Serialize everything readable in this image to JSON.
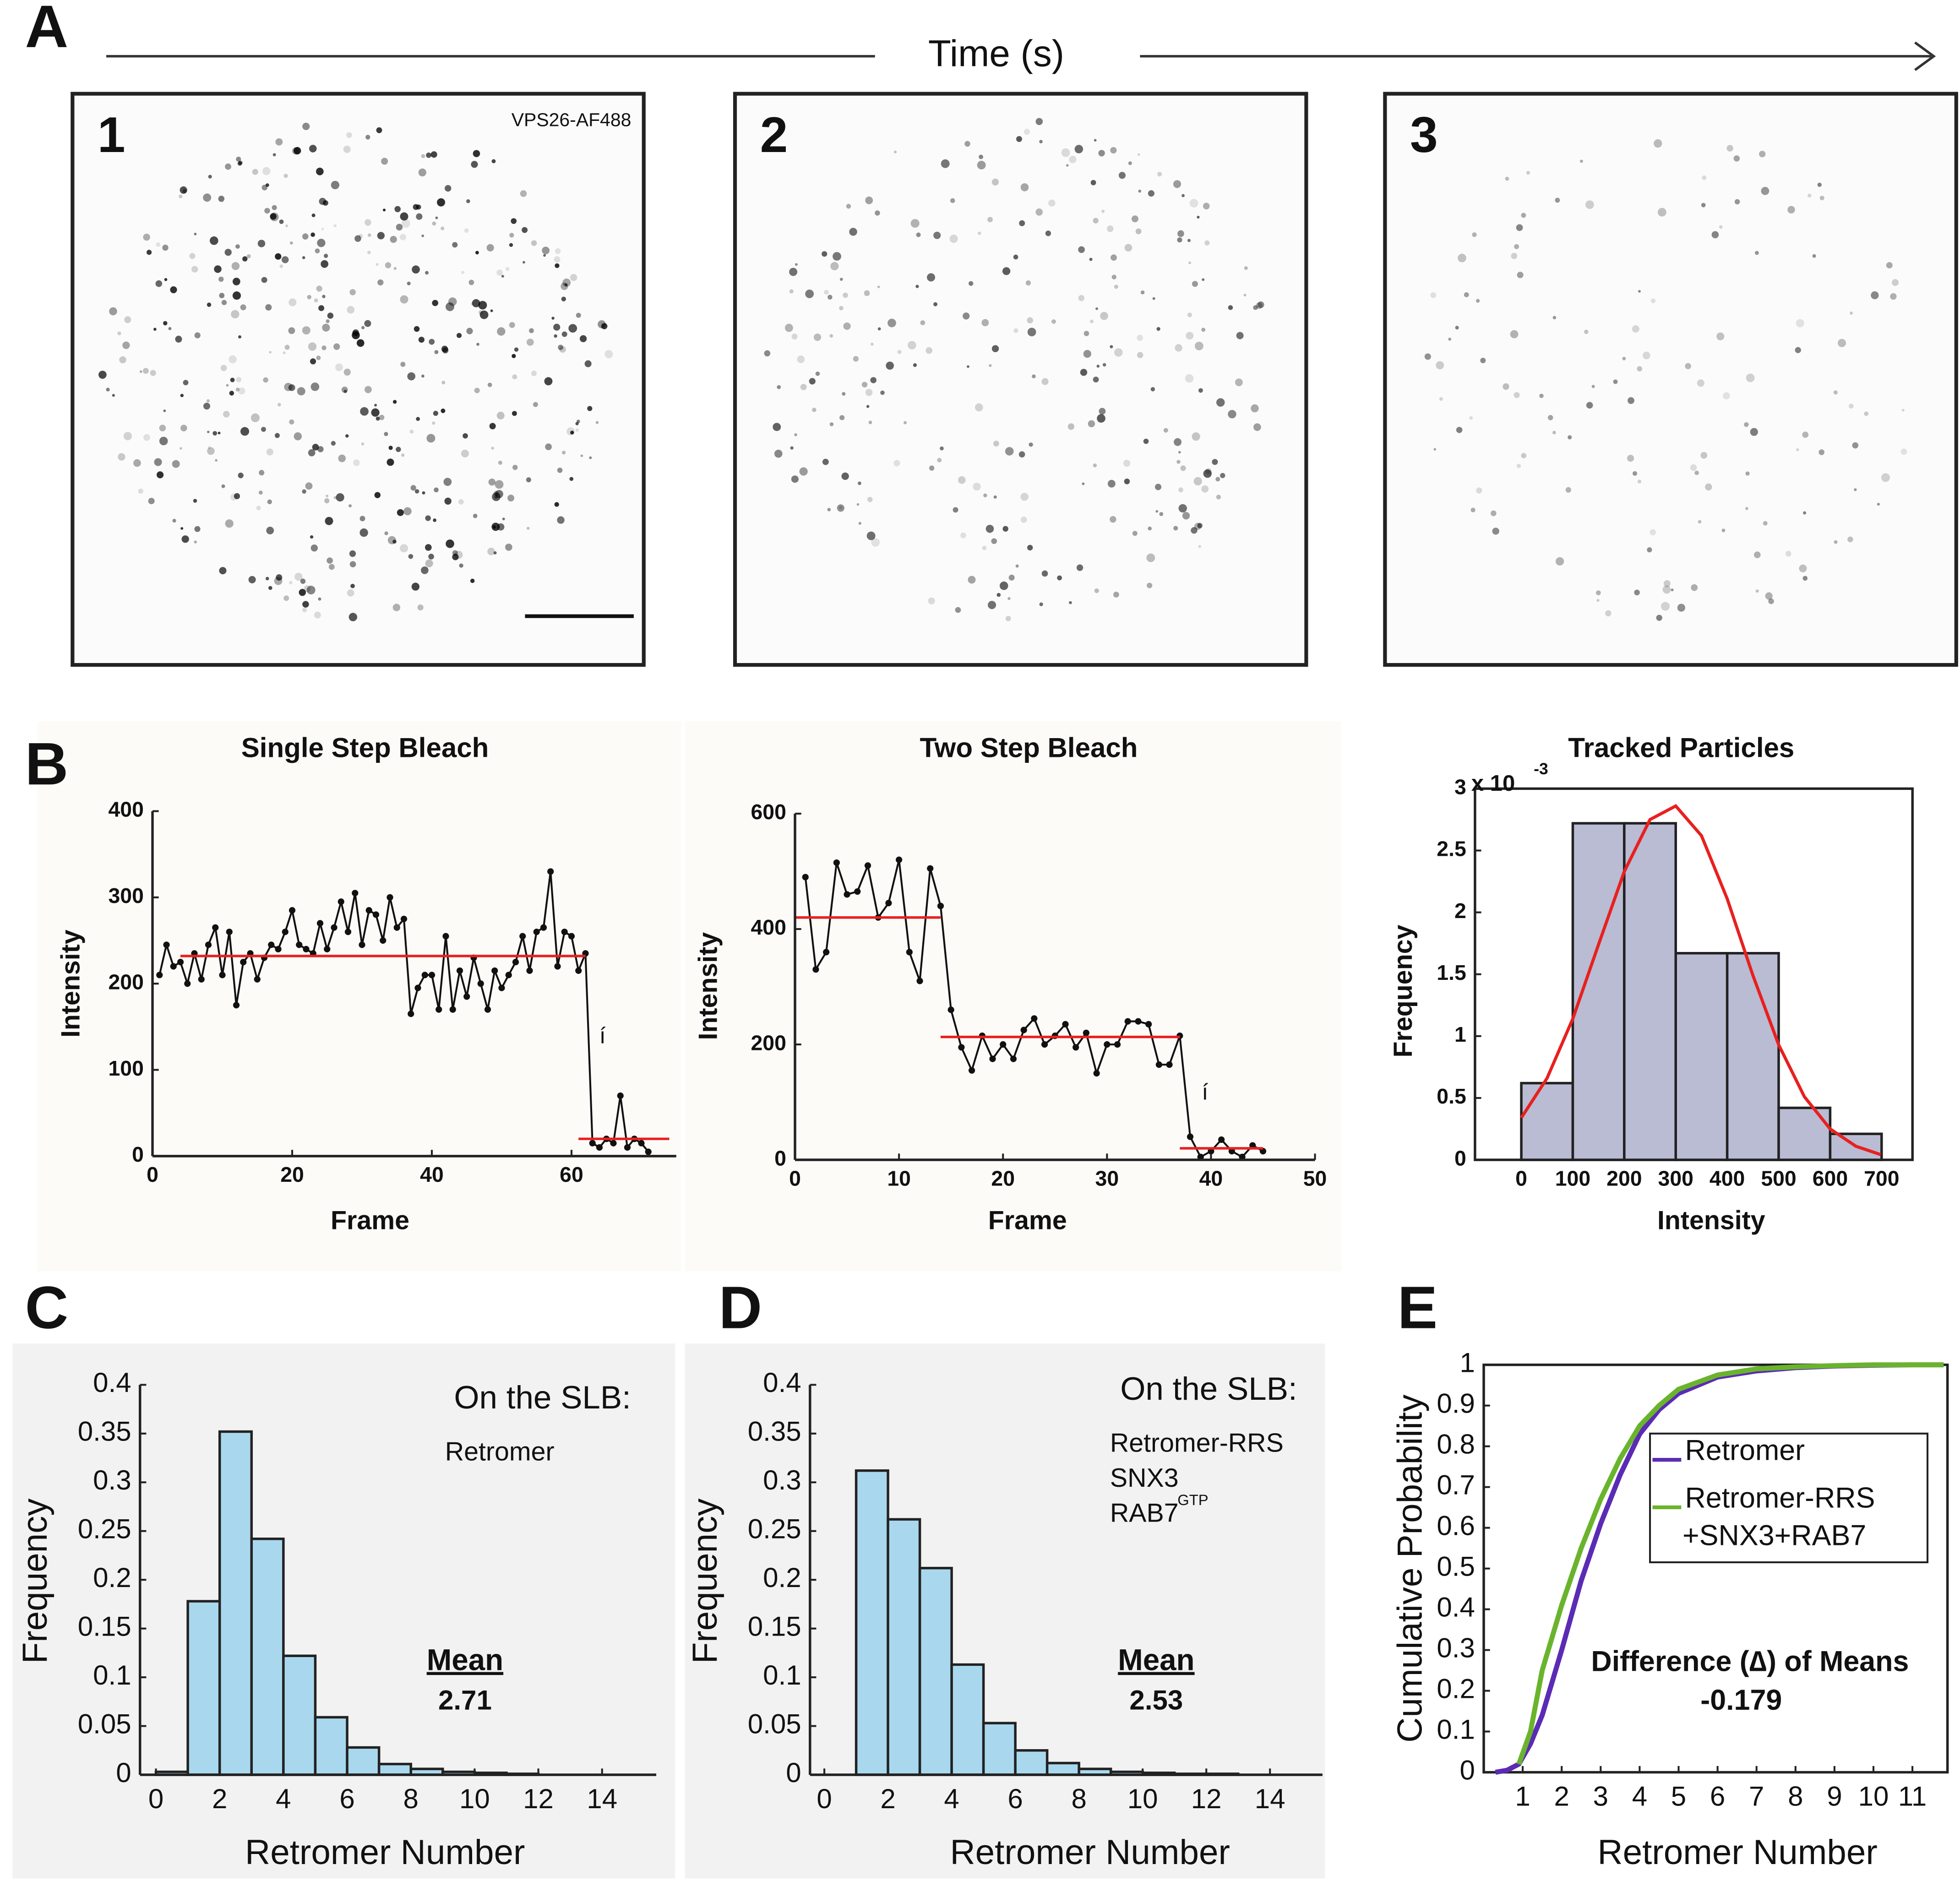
{
  "panel_labels": [
    "A",
    "B",
    "C",
    "D",
    "E"
  ],
  "panel_a": {
    "axis_label": "Time (s)",
    "images": [
      {
        "number": "1",
        "label": "VPS26-AF488"
      },
      {
        "number": "2"
      },
      {
        "number": "3"
      }
    ]
  },
  "chart_data": [
    {
      "type": "line",
      "title": "Single Step Bleach",
      "x_label": "Frame",
      "y_label": "Intensity",
      "annotation": "í",
      "color": "#111111",
      "fit_color": "#e8201f",
      "x": [
        1,
        2,
        3,
        4,
        5,
        6,
        7,
        8,
        9,
        10,
        11,
        12,
        13,
        14,
        15,
        16,
        17,
        18,
        19,
        20,
        21,
        22,
        23,
        24,
        25,
        26,
        27,
        28,
        29,
        30,
        31,
        32,
        33,
        34,
        35,
        36,
        37,
        38,
        39,
        40,
        41,
        42,
        43,
        44,
        45,
        46,
        47,
        48,
        49,
        50,
        51,
        52,
        53,
        54,
        55,
        56,
        57,
        58,
        59,
        60,
        61,
        62,
        63,
        64,
        65,
        66,
        67,
        68,
        69,
        70,
        71
      ],
      "values": [
        210,
        245,
        220,
        225,
        200,
        235,
        205,
        245,
        265,
        210,
        260,
        175,
        225,
        235,
        205,
        230,
        245,
        240,
        260,
        285,
        245,
        240,
        235,
        270,
        240,
        265,
        295,
        260,
        305,
        245,
        285,
        280,
        250,
        300,
        265,
        275,
        165,
        195,
        210,
        210,
        170,
        255,
        170,
        215,
        185,
        230,
        200,
        170,
        215,
        195,
        210,
        225,
        255,
        215,
        260,
        265,
        330,
        220,
        260,
        255,
        215,
        235,
        15,
        10,
        20,
        15,
        70,
        10,
        20,
        15,
        5
      ],
      "fits": [
        {
          "x": [
            4,
            62
          ],
          "y": [
            232,
            232
          ]
        },
        {
          "x": [
            61,
            74
          ],
          "y": [
            20,
            20
          ]
        }
      ],
      "xlim": [
        0,
        75
      ],
      "ylim": [
        0,
        400
      ],
      "xticks": [
        0,
        20,
        40,
        60
      ],
      "yticks": [
        0,
        100,
        200,
        300,
        400
      ]
    },
    {
      "type": "line",
      "title": "Two Step Bleach",
      "x_label": "Frame",
      "y_label": "Intensity",
      "annotation": "í",
      "color": "#111111",
      "fit_color": "#e8201f",
      "x": [
        1,
        2,
        3,
        4,
        5,
        6,
        7,
        8,
        9,
        10,
        11,
        12,
        13,
        14,
        15,
        16,
        17,
        18,
        19,
        20,
        21,
        22,
        23,
        24,
        25,
        26,
        27,
        28,
        29,
        30,
        31,
        32,
        33,
        34,
        35,
        36,
        37,
        38,
        39,
        40,
        41,
        42,
        43,
        44,
        45
      ],
      "values": [
        490,
        330,
        360,
        515,
        460,
        465,
        510,
        420,
        445,
        520,
        360,
        310,
        505,
        440,
        260,
        195,
        155,
        215,
        175,
        200,
        175,
        225,
        245,
        200,
        215,
        235,
        195,
        220,
        150,
        200,
        200,
        240,
        240,
        235,
        165,
        165,
        215,
        40,
        5,
        15,
        35,
        15,
        5,
        25,
        15
      ],
      "fits": [
        {
          "x": [
            0,
            14
          ],
          "y": [
            420,
            420
          ]
        },
        {
          "x": [
            14,
            37
          ],
          "y": [
            213,
            213
          ]
        },
        {
          "x": [
            37,
            45
          ],
          "y": [
            20,
            20
          ]
        }
      ],
      "xlim": [
        0,
        50
      ],
      "ylim": [
        0,
        600
      ],
      "xticks": [
        0,
        10,
        20,
        30,
        40,
        50
      ],
      "yticks": [
        0,
        200,
        400,
        600
      ]
    },
    {
      "type": "histogram",
      "title": "Tracked Particles",
      "x_label": "Intensity",
      "y_label": "Frequency",
      "multiplier": "x 10",
      "multiplier_exponent": "-3",
      "color": "#b9bcd3",
      "edge_color": "#222222",
      "curve_color": "#e8201f",
      "bins": [
        0,
        100,
        200,
        300,
        400,
        500,
        600,
        700
      ],
      "values": [
        0.62,
        2.72,
        2.72,
        1.67,
        1.67,
        0.42,
        0.21
      ],
      "curve": {
        "x": [
          0,
          50,
          100,
          150,
          200,
          250,
          300,
          350,
          400,
          450,
          500,
          550,
          600,
          650,
          700
        ],
        "y": [
          0.34,
          0.66,
          1.14,
          1.74,
          2.33,
          2.75,
          2.86,
          2.62,
          2.11,
          1.49,
          0.93,
          0.51,
          0.25,
          0.11,
          0.04
        ]
      },
      "xlim": [
        -90,
        760
      ],
      "ylim": [
        0,
        3
      ],
      "xticks": [
        0,
        100,
        200,
        300,
        400,
        500,
        600,
        700
      ],
      "yticks": [
        0,
        0.5,
        1,
        1.5,
        2,
        2.5,
        3
      ]
    },
    {
      "type": "histogram",
      "x_label": "Retromer Number",
      "y_label": "Frequency",
      "legend_title": "On the SLB:",
      "conditions": [
        "Retromer"
      ],
      "mean_label": "Mean",
      "mean": 2.71,
      "color": "#a9d8ee",
      "edge_color": "#222222",
      "bins": [
        0,
        1,
        2,
        3,
        4,
        5,
        6,
        7,
        8,
        9,
        10,
        11,
        12
      ],
      "values": [
        0.003,
        0.178,
        0.352,
        0.242,
        0.122,
        0.059,
        0.028,
        0.011,
        0.006,
        0.003,
        0.002,
        0.001
      ],
      "xlim": [
        -0.5,
        15.7
      ],
      "ylim": [
        0,
        0.4
      ],
      "xticks": [
        0,
        2,
        4,
        6,
        8,
        10,
        12,
        14
      ],
      "yticks": [
        0,
        0.05,
        0.1,
        0.15,
        0.2,
        0.25,
        0.3,
        0.35,
        0.4
      ]
    },
    {
      "type": "histogram",
      "x_label": "Retromer Number",
      "y_label": "Frequency",
      "legend_title": "On the SLB:",
      "conditions": [
        "Retromer-RRS",
        "SNX3",
        "RAB7"
      ],
      "condition_superscript": "GTP",
      "mean_label": "Mean",
      "mean": 2.53,
      "color": "#a9d8ee",
      "edge_color": "#222222",
      "bins": [
        1,
        2,
        3,
        4,
        5,
        6,
        7,
        8,
        9,
        10,
        11,
        12,
        13
      ],
      "values": [
        0.312,
        0.262,
        0.212,
        0.113,
        0.053,
        0.025,
        0.012,
        0.006,
        0.003,
        0.002,
        0.001,
        0.001
      ],
      "xlim": [
        -0.45,
        15.65
      ],
      "ylim": [
        0,
        0.4
      ],
      "xticks": [
        0,
        2,
        4,
        6,
        8,
        10,
        12,
        14
      ],
      "yticks": [
        0,
        0.05,
        0.1,
        0.15,
        0.2,
        0.25,
        0.3,
        0.35,
        0.4
      ]
    },
    {
      "type": "cdf",
      "x_label": "Retromer Number",
      "y_label": "Cumulative Probability",
      "annotation": "Difference (∆) of Means",
      "difference": -0.179,
      "x": [
        0.3,
        0.6,
        0.9,
        1.2,
        1.5,
        2,
        2.5,
        3,
        3.5,
        4,
        4.5,
        5,
        6,
        7,
        8,
        9,
        10,
        11,
        11.8
      ],
      "series": [
        {
          "name": "Retromer",
          "color": "#5b2bb5",
          "values": [
            0,
            0.005,
            0.02,
            0.07,
            0.14,
            0.3,
            0.47,
            0.61,
            0.73,
            0.83,
            0.89,
            0.93,
            0.97,
            0.985,
            0.993,
            0.997,
            0.999,
            1,
            1
          ]
        },
        {
          "name": "Retromer-RRS\n+SNX3+RAB7",
          "color": "#6ab42d",
          "values": [
            null,
            null,
            0.02,
            0.1,
            0.25,
            0.41,
            0.55,
            0.67,
            0.77,
            0.85,
            0.9,
            0.94,
            0.975,
            0.99,
            0.995,
            0.998,
            1,
            1,
            1
          ]
        }
      ],
      "xlim": [
        0,
        11.9
      ],
      "ylim": [
        0,
        1
      ],
      "xticks": [
        1,
        2,
        3,
        4,
        5,
        6,
        7,
        8,
        9,
        10,
        11
      ],
      "yticks": [
        0,
        0.1,
        0.2,
        0.3,
        0.4,
        0.5,
        0.6,
        0.7,
        0.8,
        0.9,
        1
      ]
    }
  ]
}
